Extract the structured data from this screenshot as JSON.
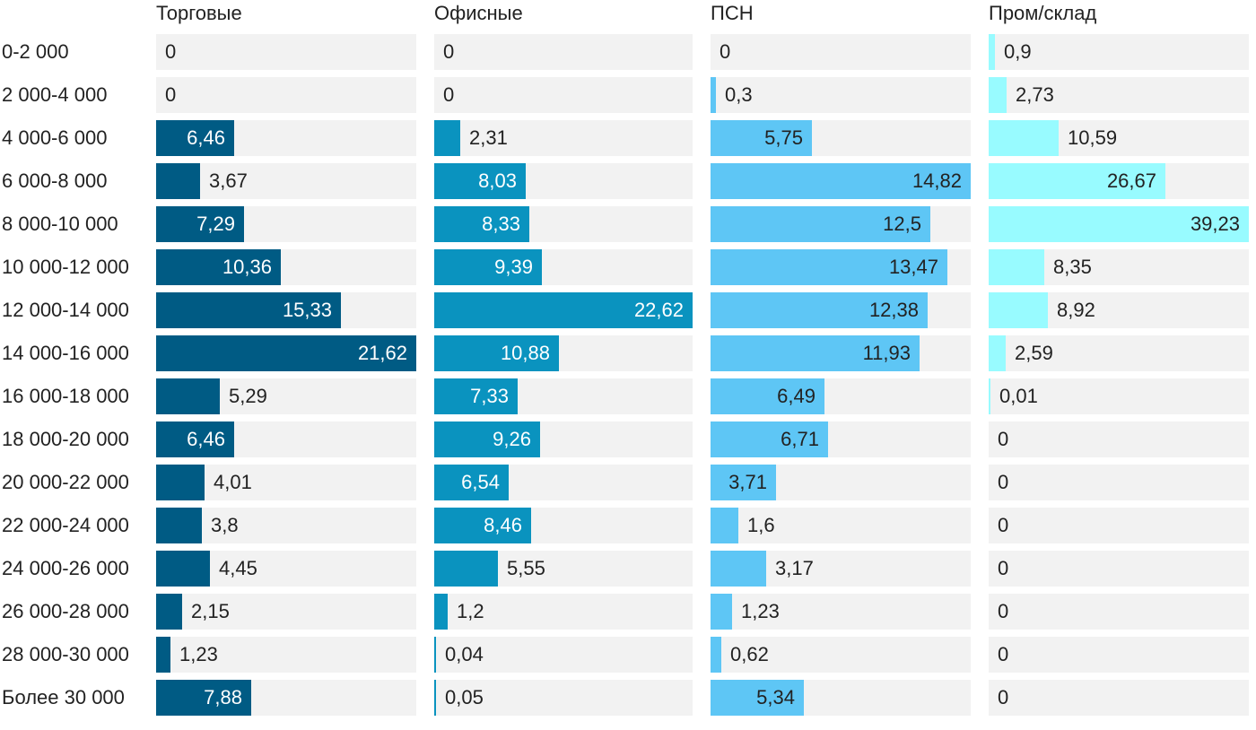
{
  "chart_data": {
    "type": "bar",
    "orientation": "horizontal",
    "layout": "small-multiples",
    "categories": [
      "0-2 000",
      "2 000-4 000",
      "4 000-6 000",
      "6 000-8 000",
      "8 000-10 000",
      "10 000-12 000",
      "12 000-14 000",
      "14 000-16 000",
      "16 000-18 000",
      "18 000-20 000",
      "20 000-22 000",
      "22 000-24 000",
      "24 000-26 000",
      "26 000-28 000",
      "28 000-30 000",
      "Более 30 000"
    ],
    "series": [
      {
        "name": "Торговые",
        "color": "#005b84",
        "values": [
          0,
          0,
          6.46,
          3.67,
          7.29,
          10.36,
          15.33,
          21.62,
          5.29,
          6.46,
          4.01,
          3.8,
          4.45,
          2.15,
          1.23,
          7.88
        ],
        "labels": [
          "0",
          "0",
          "6,46",
          "3,67",
          "7,29",
          "10,36",
          "15,33",
          "21,62",
          "5,29",
          "6,46",
          "4,01",
          "3,8",
          "4,45",
          "2,15",
          "1,23",
          "7,88"
        ]
      },
      {
        "name": "Офисные",
        "color": "#0a93bf",
        "values": [
          0,
          0,
          2.31,
          8.03,
          8.33,
          9.39,
          22.62,
          10.88,
          7.33,
          9.26,
          6.54,
          8.46,
          5.55,
          1.2,
          0.04,
          0.05
        ],
        "labels": [
          "0",
          "0",
          "2,31",
          "8,03",
          "8,33",
          "9,39",
          "22,62",
          "10,88",
          "7,33",
          "9,26",
          "6,54",
          "8,46",
          "5,55",
          "1,2",
          "0,04",
          "0,05"
        ]
      },
      {
        "name": "ПСН",
        "color": "#5ec6f5",
        "values": [
          0,
          0.3,
          5.75,
          14.82,
          12.5,
          13.47,
          12.38,
          11.93,
          6.49,
          6.71,
          3.71,
          1.6,
          3.17,
          1.23,
          0.62,
          5.34
        ],
        "labels": [
          "0",
          "0,3",
          "5,75",
          "14,82",
          "12,5",
          "13,47",
          "12,38",
          "11,93",
          "6,49",
          "6,71",
          "3,71",
          "1,6",
          "3,17",
          "1,23",
          "0,62",
          "5,34"
        ]
      },
      {
        "name": "Пром/склад",
        "color": "#98fbff",
        "values": [
          0.9,
          2.73,
          10.59,
          26.67,
          39.23,
          8.35,
          8.92,
          2.59,
          0.01,
          0,
          0,
          0,
          0,
          0,
          0,
          0
        ],
        "labels": [
          "0,9",
          "2,73",
          "10,59",
          "26,67",
          "39,23",
          "8,35",
          "8,92",
          "2,59",
          "0,01",
          "0",
          "0",
          "0",
          "0",
          "0",
          "0",
          "0"
        ]
      }
    ],
    "title": "",
    "xlabel": "",
    "ylabel": ""
  }
}
